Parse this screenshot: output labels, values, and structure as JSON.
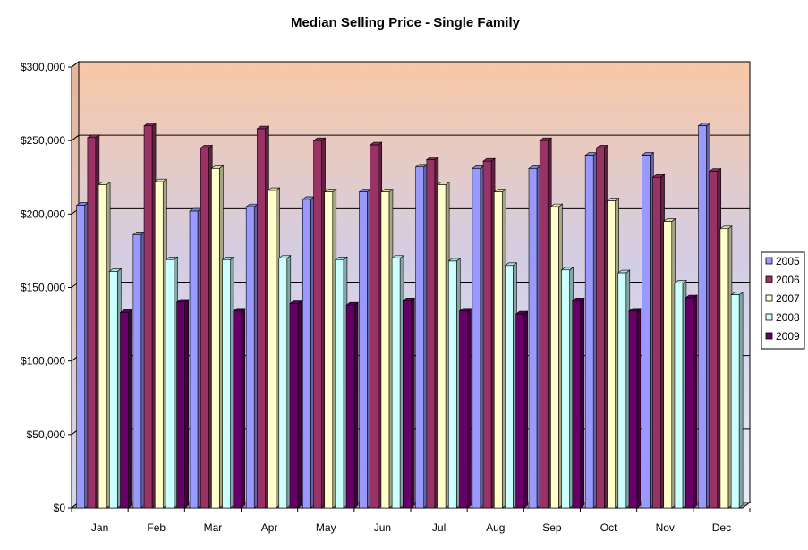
{
  "chart_data": {
    "type": "bar",
    "title": "Median Selling Price - Single Family",
    "xlabel": "",
    "ylabel": "",
    "categories": [
      "Jan",
      "Feb",
      "Mar",
      "Apr",
      "May",
      "Jun",
      "Jul",
      "Aug",
      "Sep",
      "Oct",
      "Nov",
      "Dec"
    ],
    "ylim": [
      0,
      300000
    ],
    "yticks": [
      0,
      50000,
      100000,
      150000,
      200000,
      250000,
      300000
    ],
    "ytick_labels": [
      "$0",
      "$50,000",
      "$100,000",
      "$150,000",
      "$200,000",
      "$250,000",
      "$300,000"
    ],
    "grid": true,
    "legend_position": "right",
    "series": [
      {
        "name": "2005",
        "color": "#9999ff",
        "values": [
          206000,
          186000,
          202000,
          205000,
          210000,
          215000,
          232000,
          231000,
          231000,
          240000,
          240000,
          260000
        ]
      },
      {
        "name": "2006",
        "color": "#993366",
        "values": [
          252000,
          260000,
          245000,
          258000,
          250000,
          247000,
          237000,
          236000,
          250000,
          245000,
          225000,
          229000
        ]
      },
      {
        "name": "2007",
        "color": "#ffffcc",
        "values": [
          220000,
          222000,
          231000,
          216000,
          215000,
          215000,
          220000,
          215000,
          205000,
          209000,
          195000,
          190000
        ]
      },
      {
        "name": "2008",
        "color": "#ccffff",
        "values": [
          161000,
          169000,
          169000,
          170000,
          169000,
          170000,
          168000,
          165000,
          162000,
          160000,
          153000,
          145000
        ]
      },
      {
        "name": "2009",
        "color": "#660066",
        "values": [
          133000,
          140000,
          134000,
          139000,
          138000,
          141000,
          134000,
          132000,
          141000,
          134000,
          143000,
          null
        ]
      }
    ]
  }
}
